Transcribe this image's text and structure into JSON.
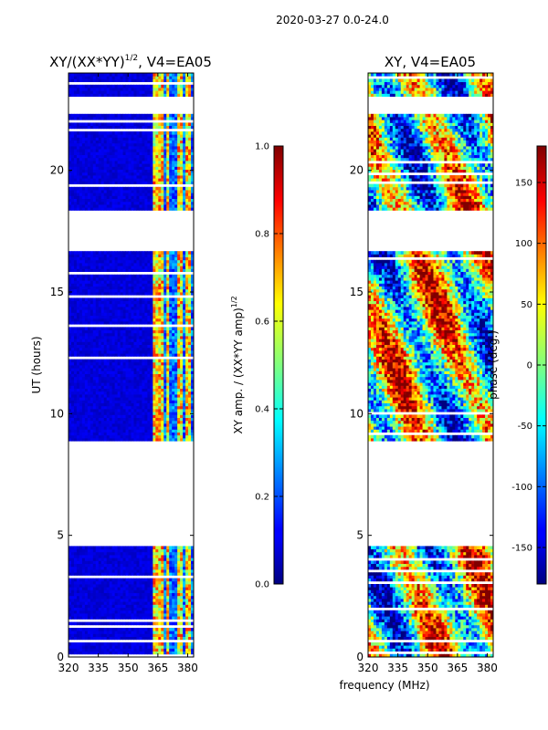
{
  "chart_data": {
    "suptitle": "2020-03-27 0.0-24.0",
    "xlabel": "frequency (MHz)",
    "ylabel": "UT (hours)",
    "xlim": [
      320,
      383
    ],
    "ylim": [
      0,
      24
    ],
    "x_ticks": [
      320,
      335,
      350,
      365,
      380
    ],
    "y_ticks": [
      0,
      5,
      10,
      15,
      20
    ],
    "data_blocks_ut": [
      [
        0.0,
        4.5
      ],
      [
        8.9,
        16.7
      ],
      [
        18.4,
        22.3
      ],
      [
        23.0,
        24.0
      ]
    ],
    "bright_channels_mhz": [
      364,
      367,
      370,
      376,
      380
    ],
    "panels": [
      {
        "type": "heatmap",
        "title_main": "XY/(XX*YY)",
        "title_exp": "1/2",
        "title_tail": ", V4=EA05",
        "quantity": "normalized XY amplitude"
      },
      {
        "type": "heatmap",
        "title": "XY, V4=EA05",
        "quantity": "XY phase"
      }
    ],
    "colorbars": [
      {
        "label_main": "XY amp. / (XX*YY amp)",
        "label_exp": "1/2",
        "range": [
          0.0,
          1.0
        ],
        "ticks": [
          "0.0",
          "0.2",
          "0.4",
          "0.6",
          "0.8",
          "1.0"
        ],
        "tick_values": [
          0.0,
          0.2,
          0.4,
          0.6,
          0.8,
          1.0
        ]
      },
      {
        "label": "phase (deg.)",
        "range": [
          -180,
          180
        ],
        "ticks": [
          "-150",
          "-100",
          "-50",
          "0",
          "50",
          "100",
          "150"
        ],
        "tick_values": [
          -150,
          -100,
          -50,
          0,
          50,
          100,
          150
        ]
      }
    ],
    "colormap": "jet"
  }
}
